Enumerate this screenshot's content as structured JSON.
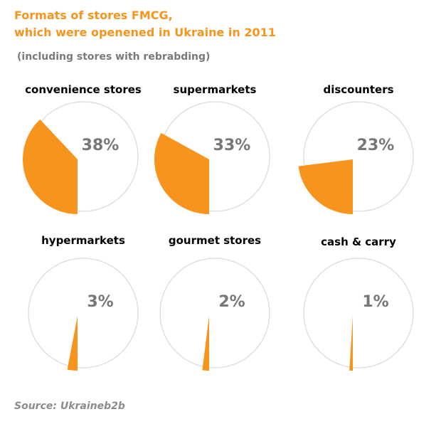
{
  "header": {
    "title_line1": "Formats of stores FMCG,",
    "title_line2": "which were openened in Ukraine in 2011",
    "subtitle": "(including stores with rebrabding)"
  },
  "footer": {
    "source": "Source: Ukraineb2b"
  },
  "colors": {
    "accent": "#f7941d",
    "circle_stroke": "#d9d9d9",
    "value_text": "#777777",
    "label_text": "#000000"
  },
  "chart_data": {
    "type": "pie",
    "title": "Formats of stores FMCG, which were openened in Ukraine in 2011",
    "subtitle": "(including stores with rebrabding)",
    "unit": "%",
    "categories": [
      "convenience stores",
      "supermarkets",
      "discounters",
      "hypermarkets",
      "gourmet stores",
      "cash & carry"
    ],
    "values": [
      38,
      33,
      23,
      3,
      2,
      1
    ],
    "value_labels": [
      "38%",
      "33%",
      "23%",
      "3%",
      "2%",
      "1%"
    ]
  }
}
